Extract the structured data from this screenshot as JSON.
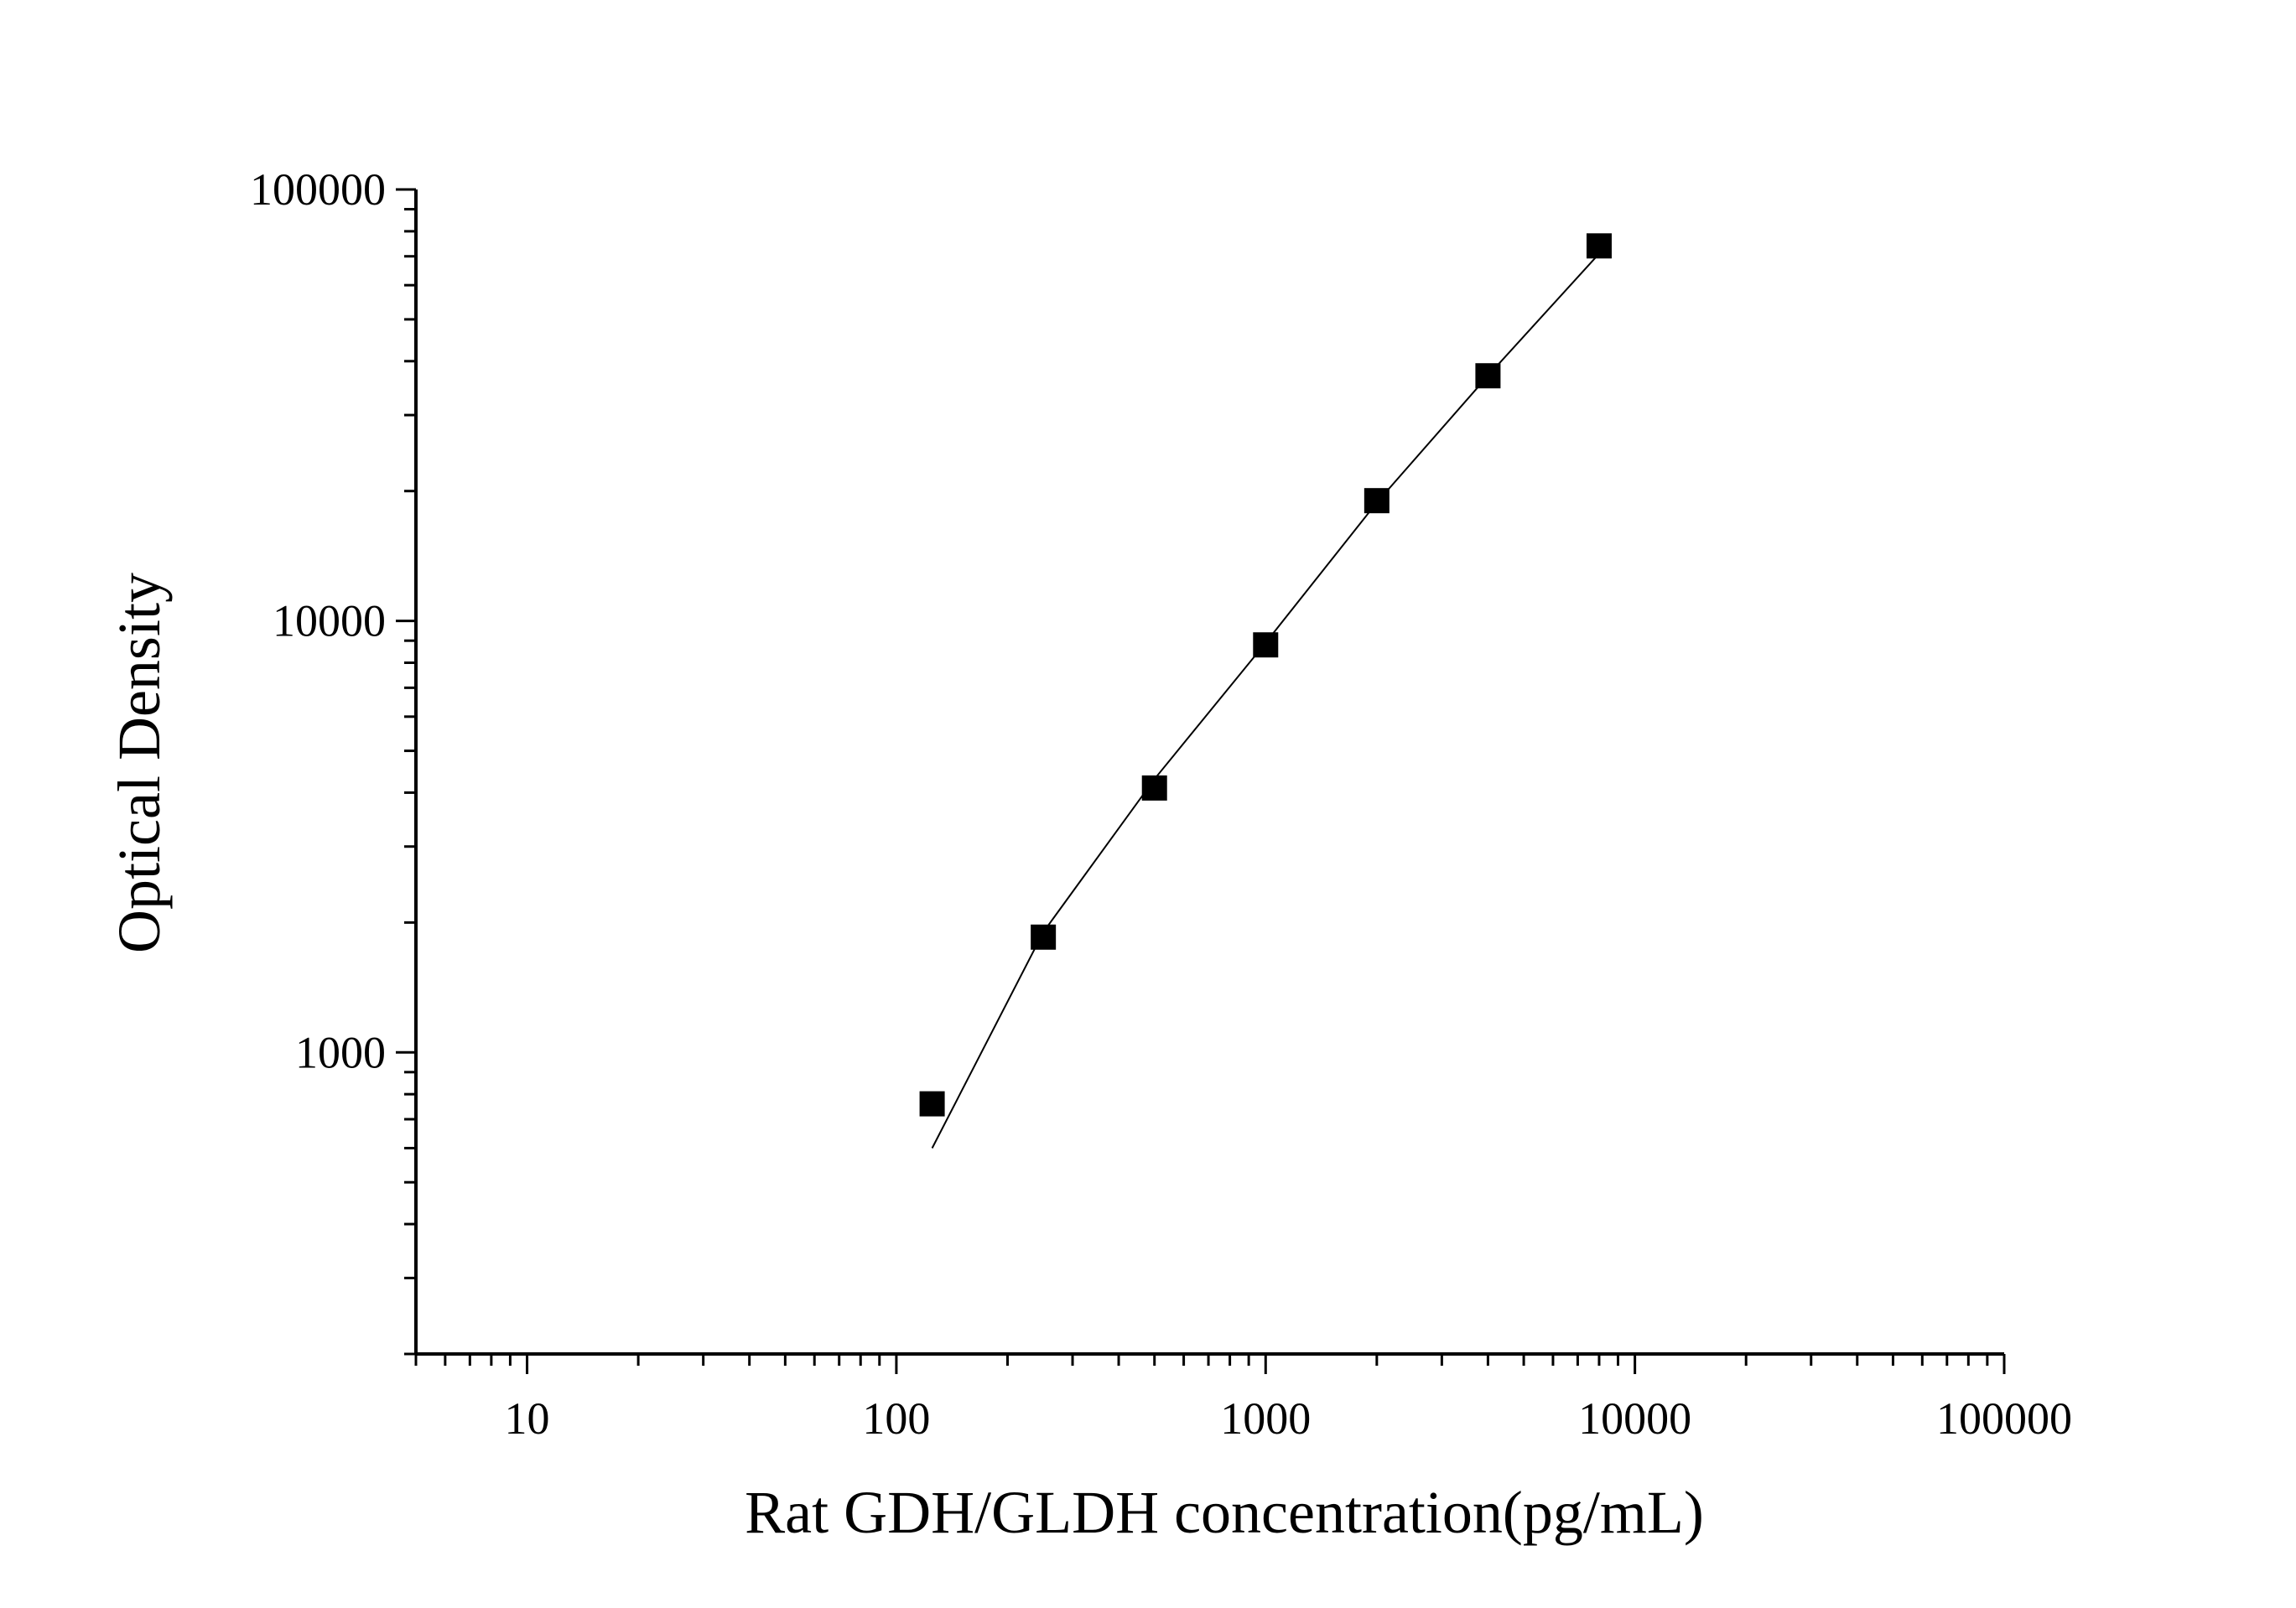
{
  "chart_data": {
    "type": "scatter",
    "title": "",
    "xlabel": "Rat  GDH/GLDH concentration(pg/mL)",
    "ylabel": "Optical Density",
    "x_scale": "log",
    "y_scale": "log",
    "xlim": [
      5,
      100000
    ],
    "ylim": [
      200,
      100000
    ],
    "x_ticks": [
      10,
      100,
      1000,
      10000,
      100000
    ],
    "x_tick_labels": [
      "10",
      "100",
      "1000",
      "10000",
      "100000"
    ],
    "y_ticks": [
      1000,
      10000,
      100000
    ],
    "y_tick_labels": [
      "1000",
      "10000",
      "100000"
    ],
    "grid": false,
    "legend": "none",
    "series": [
      {
        "marker": "square",
        "color": "#000000",
        "x": [
          125,
          250,
          500,
          1000,
          2000,
          4000,
          8000
        ],
        "y": [
          760,
          1850,
          4100,
          8800,
          19000,
          37000,
          74000
        ]
      }
    ],
    "fit_line": {
      "color": "#000000",
      "x": [
        125,
        250,
        500,
        1000,
        2000,
        4000,
        8000
      ],
      "y": [
        600,
        1900,
        4300,
        8900,
        18800,
        37000,
        71000
      ]
    }
  }
}
